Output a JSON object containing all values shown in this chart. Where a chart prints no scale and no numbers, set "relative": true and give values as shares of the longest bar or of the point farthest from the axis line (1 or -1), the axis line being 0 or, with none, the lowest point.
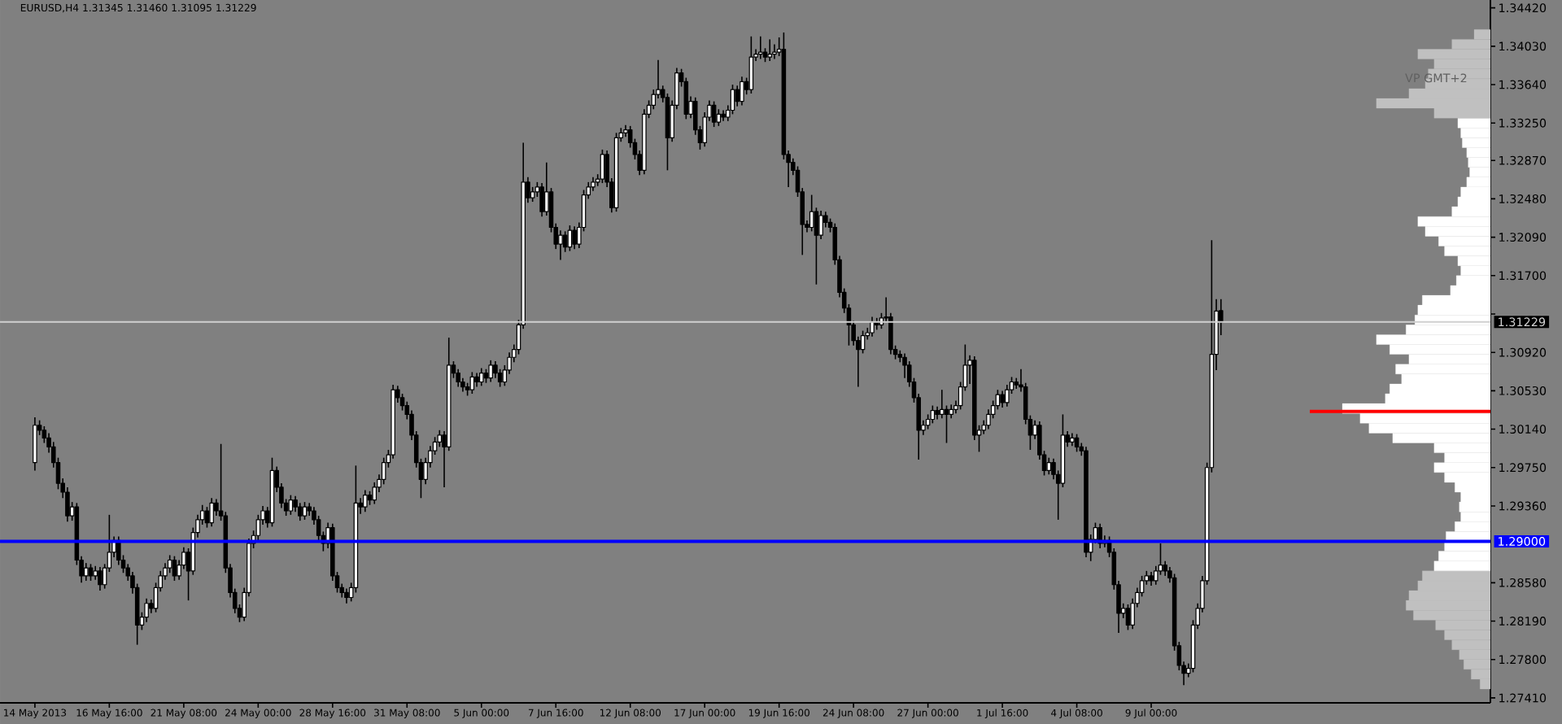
{
  "chart_data": [
    {
      "type": "candlestick",
      "title": "EURUSD,H4 1.31345 1.31460 1.31095 1.31229",
      "color": "#000000",
      "tick_labels": "x",
      "categories": [
        "14 May 2013",
        null,
        null,
        null,
        null,
        null,
        null,
        null,
        null,
        null,
        null,
        null,
        null,
        null,
        null,
        null,
        "16 May 16:00",
        null,
        null,
        null,
        null,
        null,
        null,
        null,
        null,
        null,
        null,
        null,
        null,
        null,
        null,
        null,
        "21 May 08:00",
        null,
        null,
        null,
        null,
        null,
        null,
        null,
        null,
        null,
        null,
        null,
        null,
        null,
        null,
        null,
        "24 May 00:00",
        null,
        null,
        null,
        null,
        null,
        null,
        null,
        null,
        null,
        null,
        null,
        null,
        null,
        null,
        null,
        "28 May 16:00",
        null,
        null,
        null,
        null,
        null,
        null,
        null,
        null,
        null,
        null,
        null,
        null,
        null,
        null,
        null,
        "31 May 08:00",
        null,
        null,
        null,
        null,
        null,
        null,
        null,
        null,
        null,
        null,
        null,
        null,
        null,
        null,
        null,
        "5 Jun 00:00",
        null,
        null,
        null,
        null,
        null,
        null,
        null,
        null,
        null,
        null,
        null,
        null,
        null,
        null,
        null,
        "7 Jun 16:00",
        null,
        null,
        null,
        null,
        null,
        null,
        null,
        null,
        null,
        null,
        null,
        null,
        null,
        null,
        null,
        "12 Jun 08:00",
        null,
        null,
        null,
        null,
        null,
        null,
        null,
        null,
        null,
        null,
        null,
        null,
        null,
        null,
        null,
        "17 Jun 00:00",
        null,
        null,
        null,
        null,
        null,
        null,
        null,
        null,
        null,
        null,
        null,
        null,
        null,
        null,
        null,
        "19 Jun 16:00",
        null,
        null,
        null,
        null,
        null,
        null,
        null,
        null,
        null,
        null,
        null,
        null,
        null,
        null,
        null,
        "24 Jun 08:00",
        null,
        null,
        null,
        null,
        null,
        null,
        null,
        null,
        null,
        null,
        null,
        null,
        null,
        null,
        null,
        "27 Jun 00:00",
        null,
        null,
        null,
        null,
        null,
        null,
        null,
        null,
        null,
        null,
        null,
        null,
        null,
        null,
        null,
        "1 Jul 16:00",
        null,
        null,
        null,
        null,
        null,
        null,
        null,
        null,
        null,
        null,
        null,
        null,
        null,
        null,
        null,
        "4 Jul 08:00",
        null,
        null,
        null,
        null,
        null,
        null,
        null,
        null,
        null,
        null,
        null,
        null,
        null,
        null,
        null,
        "9 Jul 00:00",
        null,
        null,
        null,
        null,
        null,
        null,
        null,
        null,
        null,
        null,
        null,
        null,
        null,
        null,
        null
      ],
      "ohlc": [
        [
          1.298,
          1.3026,
          1.2972,
          1.3018
        ],
        [
          1.3018,
          1.3023,
          1.3008,
          1.3013
        ],
        [
          1.3013,
          1.3017,
          1.3,
          1.3005
        ],
        [
          1.3005,
          1.301,
          1.299,
          1.2996
        ],
        [
          1.2996,
          1.3001,
          1.2975,
          1.298
        ],
        [
          1.298,
          1.2985,
          1.2953,
          1.2959
        ],
        [
          1.2959,
          1.2964,
          1.2944,
          1.295
        ],
        [
          1.295,
          1.2955,
          1.292,
          1.2926
        ],
        [
          1.2926,
          1.294,
          1.2921,
          1.2935
        ],
        [
          1.2935,
          1.2939,
          1.2876,
          1.2881
        ],
        [
          1.2881,
          1.2885,
          1.2858,
          1.2865
        ],
        [
          1.2865,
          1.2878,
          1.286,
          1.2873
        ],
        [
          1.2873,
          1.2877,
          1.286,
          1.2865
        ],
        [
          1.2865,
          1.2875,
          1.2861,
          1.287
        ],
        [
          1.287,
          1.2874,
          1.285,
          1.2856
        ],
        [
          1.2856,
          1.2877,
          1.2852,
          1.2873
        ],
        [
          1.2873,
          1.2927,
          1.2869,
          1.2889
        ],
        [
          1.2889,
          1.2905,
          1.2884,
          1.2901
        ],
        [
          1.2901,
          1.2905,
          1.2876,
          1.2881
        ],
        [
          1.2881,
          1.2886,
          1.2868,
          1.2873
        ],
        [
          1.2873,
          1.2877,
          1.286,
          1.2865
        ],
        [
          1.2865,
          1.2869,
          1.2847,
          1.2853
        ],
        [
          1.2853,
          1.2857,
          1.2795,
          1.2815
        ],
        [
          1.2815,
          1.2828,
          1.281,
          1.2823
        ],
        [
          1.2823,
          1.2842,
          1.2818,
          1.2837
        ],
        [
          1.2837,
          1.2841,
          1.2827,
          1.2832
        ],
        [
          1.2832,
          1.2858,
          1.2828,
          1.2853
        ],
        [
          1.2853,
          1.287,
          1.2849,
          1.2865
        ],
        [
          1.2865,
          1.2878,
          1.2861,
          1.2873
        ],
        [
          1.2873,
          1.2886,
          1.2868,
          1.2881
        ],
        [
          1.2881,
          1.2885,
          1.286,
          1.2865
        ],
        [
          1.2865,
          1.2881,
          1.2861,
          1.2876
        ],
        [
          1.2876,
          1.2894,
          1.2872,
          1.2889
        ],
        [
          1.2889,
          1.2893,
          1.284,
          1.287
        ],
        [
          1.287,
          1.2914,
          1.2866,
          1.2909
        ],
        [
          1.2909,
          1.2927,
          1.2904,
          1.2922
        ],
        [
          1.2922,
          1.2937,
          1.2917,
          1.2931
        ],
        [
          1.2931,
          1.2935,
          1.2914,
          1.2919
        ],
        [
          1.2919,
          1.2944,
          1.2915,
          1.2939
        ],
        [
          1.2939,
          1.2943,
          1.2926,
          1.2931
        ],
        [
          1.2931,
          1.2999,
          1.2921,
          1.2926
        ],
        [
          1.2926,
          1.293,
          1.2868,
          1.2873
        ],
        [
          1.2873,
          1.2877,
          1.2843,
          1.2848
        ],
        [
          1.2848,
          1.2852,
          1.2827,
          1.2832
        ],
        [
          1.2832,
          1.2836,
          1.2818,
          1.2823
        ],
        [
          1.2823,
          1.2853,
          1.2819,
          1.2848
        ],
        [
          1.2848,
          1.2903,
          1.2844,
          1.2898
        ],
        [
          1.2898,
          1.2911,
          1.2893,
          1.2906
        ],
        [
          1.2906,
          1.2927,
          1.2901,
          1.2922
        ],
        [
          1.2922,
          1.2936,
          1.2917,
          1.2931
        ],
        [
          1.2931,
          1.2935,
          1.2914,
          1.2919
        ],
        [
          1.2919,
          1.2985,
          1.2915,
          1.2972
        ],
        [
          1.2972,
          1.2976,
          1.295,
          1.2955
        ],
        [
          1.2955,
          1.2959,
          1.2934,
          1.2939
        ],
        [
          1.2939,
          1.2943,
          1.2926,
          1.2931
        ],
        [
          1.2931,
          1.2947,
          1.2927,
          1.2942
        ],
        [
          1.2942,
          1.2946,
          1.293,
          1.2935
        ],
        [
          1.2935,
          1.2939,
          1.2921,
          1.2926
        ],
        [
          1.2926,
          1.294,
          1.2922,
          1.2935
        ],
        [
          1.2935,
          1.2939,
          1.2926,
          1.2931
        ],
        [
          1.2931,
          1.2935,
          1.2917,
          1.2922
        ],
        [
          1.2922,
          1.2926,
          1.2901,
          1.2906
        ],
        [
          1.2906,
          1.291,
          1.289,
          1.2898
        ],
        [
          1.2898,
          1.2919,
          1.2893,
          1.2914
        ],
        [
          1.2914,
          1.2918,
          1.286,
          1.2865
        ],
        [
          1.2865,
          1.2869,
          1.2848,
          1.2853
        ],
        [
          1.2853,
          1.2857,
          1.2843,
          1.2848
        ],
        [
          1.2848,
          1.2852,
          1.2837,
          1.2843
        ],
        [
          1.2843,
          1.2858,
          1.2839,
          1.2853
        ],
        [
          1.2853,
          1.2977,
          1.2848,
          1.2939
        ],
        [
          1.2939,
          1.2944,
          1.2928,
          1.2935
        ],
        [
          1.2935,
          1.2952,
          1.293,
          1.2947
        ],
        [
          1.2947,
          1.2951,
          1.2937,
          1.2942
        ],
        [
          1.2942,
          1.296,
          1.2938,
          1.2955
        ],
        [
          1.2955,
          1.2968,
          1.295,
          1.2963
        ],
        [
          1.2963,
          1.2985,
          1.2958,
          1.298
        ],
        [
          1.298,
          1.2993,
          1.2975,
          1.2988
        ],
        [
          1.2988,
          1.3059,
          1.2984,
          1.3054
        ],
        [
          1.3054,
          1.3058,
          1.3041,
          1.3046
        ],
        [
          1.3046,
          1.305,
          1.3033,
          1.3038
        ],
        [
          1.3038,
          1.3042,
          1.3024,
          1.3029
        ],
        [
          1.3029,
          1.3033,
          1.3003,
          1.3008
        ],
        [
          1.3008,
          1.3012,
          1.2975,
          1.298
        ],
        [
          1.298,
          1.2984,
          1.2944,
          1.2963
        ],
        [
          1.2963,
          1.2985,
          1.2958,
          1.298
        ],
        [
          1.298,
          1.2997,
          1.2975,
          1.2992
        ],
        [
          1.2992,
          1.3006,
          1.2988,
          1.3001
        ],
        [
          1.3001,
          1.3013,
          1.2996,
          1.3008
        ],
        [
          1.3008,
          1.3012,
          1.2955,
          1.2996
        ],
        [
          1.2996,
          1.3107,
          1.2992,
          1.3079
        ],
        [
          1.3079,
          1.3083,
          1.3066,
          1.3071
        ],
        [
          1.3071,
          1.3075,
          1.3057,
          1.3062
        ],
        [
          1.3062,
          1.3066,
          1.3052,
          1.3057
        ],
        [
          1.3057,
          1.3061,
          1.3048,
          1.3054
        ],
        [
          1.3054,
          1.3072,
          1.305,
          1.3067
        ],
        [
          1.3067,
          1.3071,
          1.3057,
          1.3062
        ],
        [
          1.3062,
          1.3076,
          1.3058,
          1.3071
        ],
        [
          1.3071,
          1.3075,
          1.3061,
          1.3066
        ],
        [
          1.3066,
          1.3084,
          1.3062,
          1.3079
        ],
        [
          1.3079,
          1.3083,
          1.3066,
          1.3071
        ],
        [
          1.3071,
          1.3075,
          1.3057,
          1.3062
        ],
        [
          1.3062,
          1.3079,
          1.3058,
          1.3074
        ],
        [
          1.3074,
          1.3092,
          1.307,
          1.3087
        ],
        [
          1.3087,
          1.31,
          1.3082,
          1.3095
        ],
        [
          1.3095,
          1.3125,
          1.309,
          1.312
        ],
        [
          1.312,
          1.3305,
          1.3116,
          1.3265
        ],
        [
          1.3265,
          1.327,
          1.3244,
          1.3249
        ],
        [
          1.3249,
          1.326,
          1.3245,
          1.3255
        ],
        [
          1.3255,
          1.3265,
          1.325,
          1.326
        ],
        [
          1.326,
          1.3264,
          1.323,
          1.3235
        ],
        [
          1.3235,
          1.3285,
          1.3231,
          1.3255
        ],
        [
          1.3255,
          1.3259,
          1.3214,
          1.3219
        ],
        [
          1.3219,
          1.3223,
          1.3197,
          1.3202
        ],
        [
          1.3202,
          1.3216,
          1.3186,
          1.3211
        ],
        [
          1.3211,
          1.3215,
          1.3194,
          1.3199
        ],
        [
          1.3199,
          1.3221,
          1.3195,
          1.3216
        ],
        [
          1.3216,
          1.322,
          1.3197,
          1.3202
        ],
        [
          1.3202,
          1.3224,
          1.3198,
          1.3219
        ],
        [
          1.3219,
          1.3257,
          1.3215,
          1.3252
        ],
        [
          1.3252,
          1.3265,
          1.3248,
          1.326
        ],
        [
          1.326,
          1.327,
          1.3256,
          1.3265
        ],
        [
          1.3265,
          1.3273,
          1.3261,
          1.3268
        ],
        [
          1.3268,
          1.3298,
          1.3264,
          1.3293
        ],
        [
          1.3293,
          1.3297,
          1.326,
          1.3265
        ],
        [
          1.3265,
          1.3269,
          1.3234,
          1.3239
        ],
        [
          1.3239,
          1.3315,
          1.3235,
          1.331
        ],
        [
          1.331,
          1.332,
          1.3306,
          1.3315
        ],
        [
          1.3315,
          1.3323,
          1.3311,
          1.3318
        ],
        [
          1.3318,
          1.3322,
          1.33,
          1.3305
        ],
        [
          1.3305,
          1.3309,
          1.3288,
          1.3293
        ],
        [
          1.3293,
          1.3297,
          1.3272,
          1.3277
        ],
        [
          1.3277,
          1.3339,
          1.3273,
          1.3334
        ],
        [
          1.3334,
          1.3348,
          1.333,
          1.3343
        ],
        [
          1.3343,
          1.3359,
          1.3339,
          1.3354
        ],
        [
          1.3354,
          1.3389,
          1.335,
          1.3359
        ],
        [
          1.3359,
          1.3363,
          1.3346,
          1.3351
        ],
        [
          1.3351,
          1.3355,
          1.3277,
          1.331
        ],
        [
          1.331,
          1.3348,
          1.3306,
          1.3343
        ],
        [
          1.3343,
          1.3381,
          1.3339,
          1.3376
        ],
        [
          1.3376,
          1.338,
          1.3362,
          1.3367
        ],
        [
          1.3367,
          1.3371,
          1.3329,
          1.3334
        ],
        [
          1.3334,
          1.3352,
          1.333,
          1.3347
        ],
        [
          1.3347,
          1.3351,
          1.3313,
          1.3318
        ],
        [
          1.3318,
          1.3322,
          1.3298,
          1.3305
        ],
        [
          1.3305,
          1.3336,
          1.3301,
          1.3331
        ],
        [
          1.3331,
          1.3348,
          1.3327,
          1.3343
        ],
        [
          1.3343,
          1.3347,
          1.3321,
          1.3326
        ],
        [
          1.3326,
          1.3339,
          1.3322,
          1.3334
        ],
        [
          1.3334,
          1.3338,
          1.3327,
          1.3331
        ],
        [
          1.3331,
          1.3343,
          1.3327,
          1.3338
        ],
        [
          1.3338,
          1.3364,
          1.3334,
          1.3359
        ],
        [
          1.3359,
          1.3363,
          1.3342,
          1.3347
        ],
        [
          1.3347,
          1.3372,
          1.3343,
          1.3367
        ],
        [
          1.3367,
          1.3371,
          1.3354,
          1.3359
        ],
        [
          1.3359,
          1.3413,
          1.3355,
          1.3392
        ],
        [
          1.3392,
          1.34,
          1.3388,
          1.3395
        ],
        [
          1.3395,
          1.3413,
          1.339,
          1.3397
        ],
        [
          1.3397,
          1.3401,
          1.3387,
          1.3392
        ],
        [
          1.3392,
          1.341,
          1.3388,
          1.3395
        ],
        [
          1.3395,
          1.3405,
          1.339,
          1.3397
        ],
        [
          1.3397,
          1.3412,
          1.3393,
          1.34
        ],
        [
          1.34,
          1.3417,
          1.3288,
          1.3293
        ],
        [
          1.3293,
          1.3297,
          1.326,
          1.3285
        ],
        [
          1.3285,
          1.3289,
          1.3272,
          1.3277
        ],
        [
          1.3277,
          1.3281,
          1.325,
          1.3255
        ],
        [
          1.3255,
          1.3259,
          1.3191,
          1.3222
        ],
        [
          1.3222,
          1.3226,
          1.3214,
          1.3219
        ],
        [
          1.3219,
          1.3252,
          1.3215,
          1.3235
        ],
        [
          1.3235,
          1.3239,
          1.3161,
          1.3211
        ],
        [
          1.3211,
          1.3236,
          1.3207,
          1.3231
        ],
        [
          1.3231,
          1.3235,
          1.3219,
          1.3224
        ],
        [
          1.3224,
          1.3228,
          1.3214,
          1.3219
        ],
        [
          1.3219,
          1.3223,
          1.3181,
          1.3186
        ],
        [
          1.3186,
          1.319,
          1.3148,
          1.3153
        ],
        [
          1.3153,
          1.3157,
          1.3132,
          1.3137
        ],
        [
          1.3137,
          1.3141,
          1.3099,
          1.312
        ],
        [
          1.312,
          1.3124,
          1.3099,
          1.3104
        ],
        [
          1.3104,
          1.3108,
          1.3057,
          1.3095
        ],
        [
          1.3095,
          1.3114,
          1.3091,
          1.3109
        ],
        [
          1.3109,
          1.3117,
          1.3105,
          1.3112
        ],
        [
          1.3112,
          1.3128,
          1.3108,
          1.3123
        ],
        [
          1.3123,
          1.3127,
          1.3115,
          1.312
        ],
        [
          1.312,
          1.3132,
          1.3116,
          1.3127
        ],
        [
          1.3127,
          1.3148,
          1.3123,
          1.3128
        ],
        [
          1.3128,
          1.3132,
          1.309,
          1.3095
        ],
        [
          1.3095,
          1.3099,
          1.3085,
          1.309
        ],
        [
          1.309,
          1.3094,
          1.3082,
          1.3087
        ],
        [
          1.3087,
          1.3091,
          1.3066,
          1.3079
        ],
        [
          1.3079,
          1.3083,
          1.3057,
          1.3062
        ],
        [
          1.3062,
          1.3066,
          1.3041,
          1.3046
        ],
        [
          1.3046,
          1.305,
          1.2983,
          1.3013
        ],
        [
          1.3013,
          1.3023,
          1.3008,
          1.3018
        ],
        [
          1.3018,
          1.3029,
          1.3014,
          1.3024
        ],
        [
          1.3024,
          1.3038,
          1.302,
          1.3033
        ],
        [
          1.3033,
          1.3037,
          1.3024,
          1.3029
        ],
        [
          1.3029,
          1.3054,
          1.3025,
          1.3034
        ],
        [
          1.3034,
          1.3038,
          1.3,
          1.3029
        ],
        [
          1.3029,
          1.3039,
          1.3025,
          1.3034
        ],
        [
          1.3034,
          1.3043,
          1.303,
          1.3038
        ],
        [
          1.3038,
          1.3062,
          1.3034,
          1.3057
        ],
        [
          1.3057,
          1.31,
          1.3053,
          1.3079
        ],
        [
          1.3079,
          1.3089,
          1.306,
          1.3084
        ],
        [
          1.3084,
          1.3088,
          1.3003,
          1.3008
        ],
        [
          1.3008,
          1.3018,
          1.2991,
          1.3013
        ],
        [
          1.3013,
          1.3023,
          1.3009,
          1.3018
        ],
        [
          1.3018,
          1.3034,
          1.3014,
          1.3029
        ],
        [
          1.3029,
          1.3043,
          1.3025,
          1.3038
        ],
        [
          1.3038,
          1.3054,
          1.3034,
          1.3049
        ],
        [
          1.3049,
          1.3053,
          1.3036,
          1.3041
        ],
        [
          1.3041,
          1.3059,
          1.3037,
          1.3054
        ],
        [
          1.3054,
          1.3067,
          1.305,
          1.3062
        ],
        [
          1.3062,
          1.3066,
          1.3055,
          1.3059
        ],
        [
          1.3059,
          1.3075,
          1.3052,
          1.3057
        ],
        [
          1.3057,
          1.3061,
          1.3019,
          1.3024
        ],
        [
          1.3024,
          1.3028,
          1.2993,
          1.3008
        ],
        [
          1.3008,
          1.3023,
          1.3004,
          1.3018
        ],
        [
          1.3018,
          1.3022,
          1.2983,
          1.2988
        ],
        [
          1.2988,
          1.2992,
          1.2967,
          1.2972
        ],
        [
          1.2972,
          1.2985,
          1.2968,
          1.298
        ],
        [
          1.298,
          1.2984,
          1.2963,
          1.2968
        ],
        [
          1.2968,
          1.2972,
          1.2922,
          1.2959
        ],
        [
          1.2959,
          1.3029,
          1.2955,
          1.3008
        ],
        [
          1.3008,
          1.3012,
          1.2996,
          1.3001
        ],
        [
          1.3001,
          1.301,
          1.2997,
          1.3005
        ],
        [
          1.3005,
          1.3009,
          1.2991,
          1.2996
        ],
        [
          1.2996,
          1.3,
          1.2987,
          1.2992
        ],
        [
          1.2992,
          1.2996,
          1.2884,
          1.2889
        ],
        [
          1.2889,
          1.2907,
          1.288,
          1.2902
        ],
        [
          1.2902,
          1.2919,
          1.2898,
          1.2914
        ],
        [
          1.2914,
          1.2918,
          1.2893,
          1.2898
        ],
        [
          1.2898,
          1.2906,
          1.2894,
          1.2901
        ],
        [
          1.2901,
          1.2905,
          1.2884,
          1.2889
        ],
        [
          1.2889,
          1.2893,
          1.2851,
          1.2856
        ],
        [
          1.2856,
          1.286,
          1.2807,
          1.2827
        ],
        [
          1.2827,
          1.2837,
          1.2822,
          1.2832
        ],
        [
          1.2832,
          1.2836,
          1.281,
          1.2815
        ],
        [
          1.2815,
          1.2842,
          1.2811,
          1.2837
        ],
        [
          1.2837,
          1.2853,
          1.2833,
          1.2848
        ],
        [
          1.2848,
          1.2865,
          1.2844,
          1.286
        ],
        [
          1.286,
          1.287,
          1.2856,
          1.2865
        ],
        [
          1.2865,
          1.2869,
          1.2855,
          1.286
        ],
        [
          1.286,
          1.2875,
          1.2856,
          1.287
        ],
        [
          1.287,
          1.2898,
          1.2866,
          1.2876
        ],
        [
          1.2876,
          1.288,
          1.2865,
          1.287
        ],
        [
          1.287,
          1.2874,
          1.2858,
          1.2863
        ],
        [
          1.2863,
          1.2867,
          1.2789,
          1.2794
        ],
        [
          1.2794,
          1.2798,
          1.2769,
          1.2774
        ],
        [
          1.2774,
          1.2778,
          1.2754,
          1.2766
        ],
        [
          1.2766,
          1.2776,
          1.2762,
          1.2771
        ],
        [
          1.2771,
          1.282,
          1.2767,
          1.2815
        ],
        [
          1.2815,
          1.2837,
          1.2811,
          1.2832
        ],
        [
          1.2832,
          1.2865,
          1.2828,
          1.286
        ],
        [
          1.286,
          1.298,
          1.2856,
          1.2975
        ],
        [
          1.2975,
          1.3206,
          1.297,
          1.309
        ],
        [
          1.309,
          1.3146,
          1.3074,
          1.3134
        ],
        [
          1.31345,
          1.3146,
          1.31095,
          1.31229
        ]
      ],
      "ylim": [
        1.2736,
        1.345
      ],
      "ref_lines": [
        {
          "axis": "y",
          "value": 1.31229,
          "label": "1.31229",
          "color": "#d0d0d0"
        },
        {
          "axis": "y",
          "value": 1.29,
          "label": "1.29000",
          "color": "#0000ff"
        }
      ]
    },
    {
      "type": "bar",
      "orientation": "horizontal",
      "relative": true,
      "tick_labels": "y",
      "x": [
        1.2755,
        1.2765,
        1.2775,
        1.2785,
        1.2795,
        1.2805,
        1.2815,
        1.2825,
        1.2835,
        1.2845,
        1.2855,
        1.2865,
        1.2875,
        1.2885,
        1.2895,
        1.2905,
        1.2915,
        1.2925,
        1.2935,
        1.2945,
        1.2955,
        1.2965,
        1.2975,
        1.2985,
        1.2995,
        1.3005,
        1.3015,
        1.3025,
        1.3035,
        1.3045,
        1.3055,
        1.3065,
        1.3075,
        1.3085,
        1.3095,
        1.3105,
        1.3115,
        1.3125,
        1.3135,
        1.3145,
        1.3155,
        1.3165,
        1.3175,
        1.3185,
        1.3195,
        1.3205,
        1.3215,
        1.3225,
        1.3235,
        1.3245,
        1.3255,
        1.3265,
        1.3275,
        1.3285,
        1.3295,
        1.3305,
        1.3315,
        1.3325,
        1.3335,
        1.3345,
        1.3355,
        1.3365,
        1.3375,
        1.3385,
        1.3395,
        1.3405,
        1.3415
      ],
      "values": [
        0.07,
        0.13,
        0.18,
        0.21,
        0.26,
        0.31,
        0.37,
        0.52,
        0.57,
        0.55,
        0.49,
        0.46,
        0.38,
        0.35,
        0.31,
        0.3,
        0.24,
        0.2,
        0.21,
        0.2,
        0.24,
        0.31,
        0.38,
        0.31,
        0.38,
        0.66,
        0.82,
        0.88,
        1,
        0.71,
        0.68,
        0.6,
        0.64,
        0.55,
        0.68,
        0.77,
        0.57,
        0.51,
        0.49,
        0.46,
        0.27,
        0.23,
        0.2,
        0.22,
        0.31,
        0.35,
        0.44,
        0.49,
        0.26,
        0.22,
        0.2,
        0.16,
        0.14,
        0.15,
        0.16,
        0.19,
        0.2,
        0.22,
        0.38,
        0.77,
        0.55,
        0.44,
        0.42,
        0.38,
        0.49,
        0.26,
        0.11
      ],
      "colors": [
        "#c0c0c0",
        "#c0c0c0",
        "#c0c0c0",
        "#c0c0c0",
        "#c0c0c0",
        "#c0c0c0",
        "#c0c0c0",
        "#c0c0c0",
        "#c0c0c0",
        "#c0c0c0",
        "#c0c0c0",
        "#c0c0c0",
        "#ffffff",
        "#ffffff",
        "#ffffff",
        "#ffffff",
        "#ffffff",
        "#ffffff",
        "#ffffff",
        "#ffffff",
        "#ffffff",
        "#ffffff",
        "#ffffff",
        "#ffffff",
        "#ffffff",
        "#ffffff",
        "#ffffff",
        "#ffffff",
        "#ffffff",
        "#ffffff",
        "#ffffff",
        "#ffffff",
        "#ffffff",
        "#ffffff",
        "#ffffff",
        "#ffffff",
        "#ffffff",
        "#ffffff",
        "#ffffff",
        "#ffffff",
        "#ffffff",
        "#ffffff",
        "#ffffff",
        "#ffffff",
        "#ffffff",
        "#ffffff",
        "#ffffff",
        "#ffffff",
        "#ffffff",
        "#ffffff",
        "#ffffff",
        "#ffffff",
        "#ffffff",
        "#ffffff",
        "#ffffff",
        "#ffffff",
        "#ffffff",
        "#ffffff",
        "#c0c0c0",
        "#c0c0c0",
        "#c0c0c0",
        "#c0c0c0",
        "#c0c0c0",
        "#c0c0c0",
        "#c0c0c0",
        "#c0c0c0",
        "#c0c0c0"
      ],
      "ylim": [
        1.2736,
        1.345
      ],
      "yticks": [
        {
          "value": 1.3442,
          "label": "1.34420"
        },
        {
          "value": 1.3403,
          "label": "1.34030"
        },
        {
          "value": 1.3364,
          "label": "1.33640"
        },
        {
          "value": 1.3325,
          "label": "1.33250"
        },
        {
          "value": 1.3287,
          "label": "1.32870"
        },
        {
          "value": 1.3248,
          "label": "1.32480"
        },
        {
          "value": 1.3209,
          "label": "1.32090"
        },
        {
          "value": 1.317,
          "label": "1.31700"
        },
        {
          "value": 1.3131,
          "label": null
        },
        {
          "value": 1.3092,
          "label": "1.30920"
        },
        {
          "value": 1.3053,
          "label": "1.30530"
        },
        {
          "value": 1.3014,
          "label": "1.30140"
        },
        {
          "value": 1.2975,
          "label": "1.29750"
        },
        {
          "value": 1.2936,
          "label": "1.29360"
        },
        {
          "value": 1.2858,
          "label": "1.28580"
        },
        {
          "value": 1.2819,
          "label": "1.28190"
        },
        {
          "value": 1.278,
          "label": "1.27800"
        },
        {
          "value": 1.2741,
          "label": "1.27410"
        }
      ],
      "ref_lines": [
        {
          "axis": "y",
          "value": 1.3032,
          "color": "#ff0000"
        }
      ],
      "annotations": [
        "VP GMT+2"
      ]
    }
  ]
}
